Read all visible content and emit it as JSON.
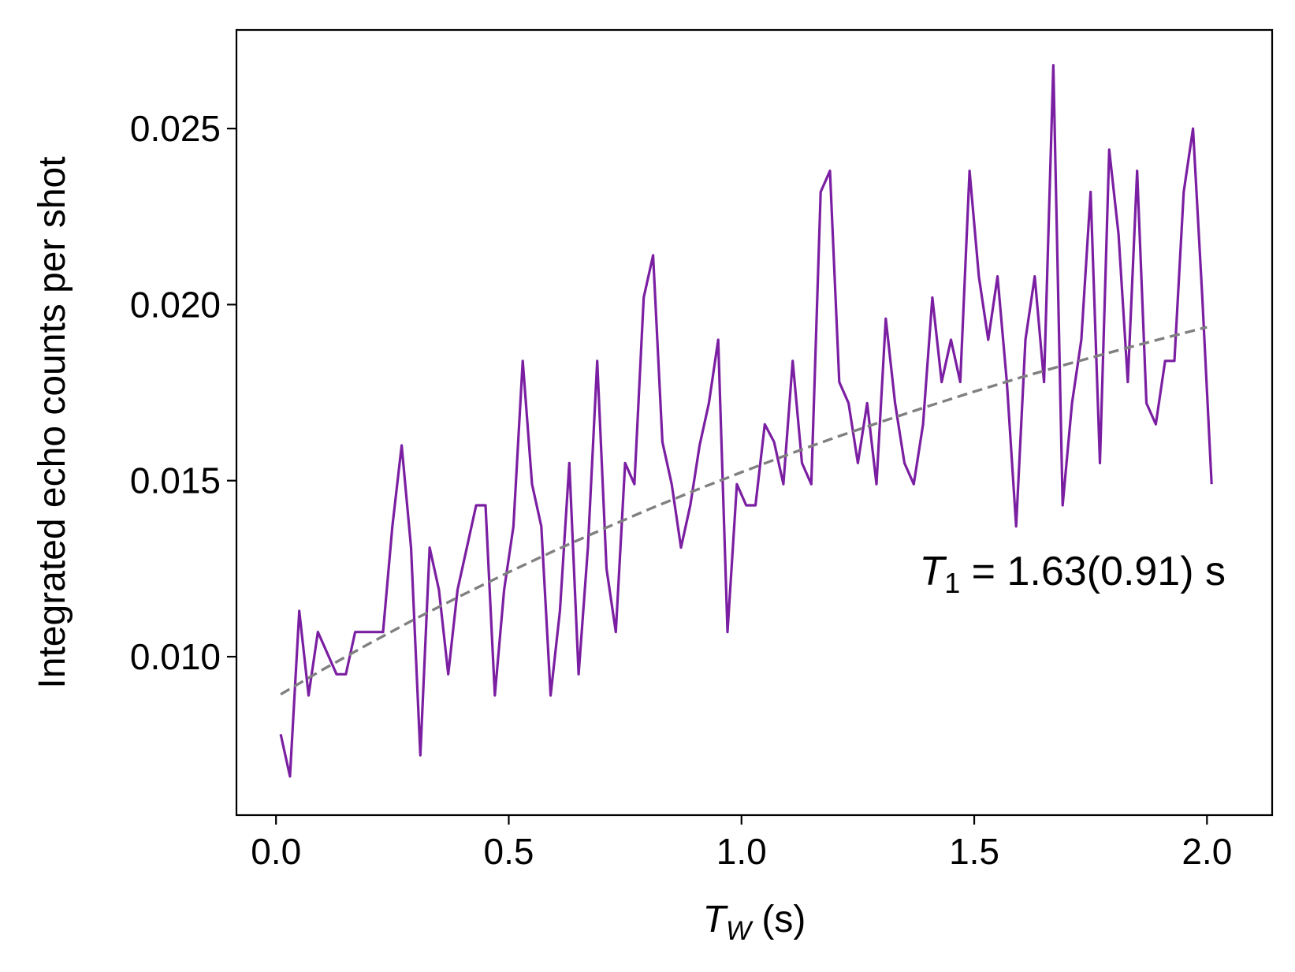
{
  "chart_data": {
    "type": "line",
    "xlabel_main": "T",
    "xlabel_sub": "W",
    "xlabel_unit": " (s)",
    "ylabel": "Integrated echo counts per shot",
    "xlim": [
      -0.085,
      2.14
    ],
    "ylim": [
      0.0055,
      0.0278
    ],
    "xticks": [
      0.0,
      0.5,
      1.0,
      1.5,
      2.0
    ],
    "xtick_labels": [
      "0.0",
      "0.5",
      "1.0",
      "1.5",
      "2.0"
    ],
    "yticks": [
      0.01,
      0.015,
      0.02,
      0.025
    ],
    "ytick_labels": [
      "0.010",
      "0.015",
      "0.020",
      "0.025"
    ],
    "annotation": {
      "symbol": "T",
      "subscript": "1",
      "text": " = 1.63(0.91) s"
    },
    "series": [
      {
        "name": "data",
        "color": "#7b1fa2",
        "style": "solid",
        "x": [
          0.01,
          0.03,
          0.05,
          0.07,
          0.09,
          0.11,
          0.13,
          0.15,
          0.17,
          0.19,
          0.21,
          0.23,
          0.25,
          0.27,
          0.29,
          0.31,
          0.33,
          0.35,
          0.37,
          0.39,
          0.41,
          0.43,
          0.45,
          0.47,
          0.49,
          0.51,
          0.53,
          0.55,
          0.57,
          0.59,
          0.61,
          0.63,
          0.65,
          0.67,
          0.69,
          0.71,
          0.73,
          0.75,
          0.77,
          0.79,
          0.81,
          0.83,
          0.85,
          0.87,
          0.89,
          0.91,
          0.93,
          0.95,
          0.97,
          0.99,
          1.01,
          1.03,
          1.05,
          1.07,
          1.09,
          1.11,
          1.13,
          1.15,
          1.17,
          1.19,
          1.21,
          1.23,
          1.25,
          1.27,
          1.29,
          1.31,
          1.33,
          1.35,
          1.37,
          1.39,
          1.41,
          1.43,
          1.45,
          1.47,
          1.49,
          1.51,
          1.53,
          1.55,
          1.57,
          1.59,
          1.61,
          1.63,
          1.65,
          1.67,
          1.69,
          1.71,
          1.73,
          1.75,
          1.77,
          1.79,
          1.81,
          1.83,
          1.85,
          1.87,
          1.89,
          1.91,
          1.93,
          1.95,
          1.97,
          1.99,
          2.01
        ],
        "y": [
          0.0078,
          0.0066,
          0.0113,
          0.0089,
          0.0107,
          0.0101,
          0.0095,
          0.0095,
          0.0107,
          0.0107,
          0.0107,
          0.0107,
          0.0137,
          0.016,
          0.0131,
          0.0072,
          0.0131,
          0.0119,
          0.0095,
          0.0119,
          0.0131,
          0.0143,
          0.0143,
          0.0089,
          0.0119,
          0.0137,
          0.0184,
          0.0149,
          0.0137,
          0.0089,
          0.0113,
          0.0155,
          0.0095,
          0.0131,
          0.0184,
          0.0125,
          0.0107,
          0.0155,
          0.0149,
          0.0202,
          0.0214,
          0.0161,
          0.0149,
          0.0131,
          0.0143,
          0.016,
          0.0172,
          0.019,
          0.0107,
          0.0149,
          0.0143,
          0.0143,
          0.0166,
          0.0161,
          0.0149,
          0.0184,
          0.0155,
          0.0149,
          0.0232,
          0.0238,
          0.0178,
          0.0172,
          0.0155,
          0.0172,
          0.0149,
          0.0196,
          0.0172,
          0.0155,
          0.0149,
          0.0166,
          0.0202,
          0.0178,
          0.019,
          0.0178,
          0.0238,
          0.0208,
          0.019,
          0.0208,
          0.0178,
          0.0137,
          0.019,
          0.0208,
          0.0178,
          0.0268,
          0.0143,
          0.0172,
          0.019,
          0.0232,
          0.0155,
          0.0244,
          0.022,
          0.0178,
          0.0238,
          0.0172,
          0.0166,
          0.0184,
          0.0184,
          0.0232,
          0.025,
          0.0202,
          0.0149
        ]
      },
      {
        "name": "fit",
        "color": "#808080",
        "style": "dashed",
        "x": [
          0.01,
          0.1,
          0.2,
          0.3,
          0.4,
          0.5,
          0.6,
          0.7,
          0.8,
          0.9,
          1.0,
          1.1,
          1.2,
          1.3,
          1.4,
          1.5,
          1.6,
          1.7,
          1.8,
          1.9,
          2.0
        ],
        "y": [
          0.00893,
          0.00963,
          0.01037,
          0.01108,
          0.01175,
          0.0124,
          0.01302,
          0.01361,
          0.01418,
          0.01472,
          0.01524,
          0.01574,
          0.01622,
          0.01667,
          0.01711,
          0.01753,
          0.01793,
          0.01831,
          0.01867,
          0.01902,
          0.01936
        ]
      }
    ]
  }
}
